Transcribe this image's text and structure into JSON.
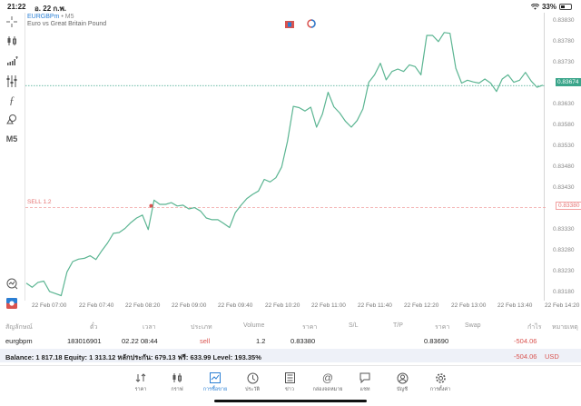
{
  "status_bar": {
    "time": "21:22",
    "date": "อ. 22 ก.พ.",
    "battery": "33%"
  },
  "chart": {
    "symbol": "EURGBPm",
    "separator": "•",
    "timeframe": "M5",
    "description": "Euro vs Great Britain Pound",
    "current_price": "0.83674",
    "sell_label": "SELL 1.2",
    "sell_price": "0.83380",
    "colors": {
      "line": "#5bb592",
      "current": "#3aa58a",
      "sell": "#e57373"
    }
  },
  "left_toolbar": [
    {
      "name": "crosshair-icon",
      "glyph": "+"
    },
    {
      "name": "chart-type-icon",
      "glyph": ""
    },
    {
      "name": "indicators-icon",
      "glyph": ""
    },
    {
      "name": "settings-sliders-icon",
      "glyph": ""
    },
    {
      "name": "function-icon",
      "glyph": "ƒ"
    },
    {
      "name": "objects-icon",
      "glyph": ""
    },
    {
      "name": "timeframe",
      "glyph": "M5"
    }
  ],
  "chart_data": {
    "type": "line",
    "title": "EURGBPm • M5",
    "subtitle": "Euro vs Great Britain Pound",
    "xlabel": "",
    "ylabel": "",
    "ylim": [
      0.8316,
      0.8385
    ],
    "y_ticks": [
      "0.83830",
      "0.83780",
      "0.83730",
      "0.83680",
      "0.83630",
      "0.83580",
      "0.83530",
      "0.83480",
      "0.83430",
      "0.83380",
      "0.83330",
      "0.83280",
      "0.83230",
      "0.83180"
    ],
    "x_ticks": [
      "22 Feb 07:00",
      "22 Feb 07:40",
      "22 Feb 08:20",
      "22 Feb 09:00",
      "22 Feb 09:40",
      "22 Feb 10:20",
      "22 Feb 11:00",
      "22 Feb 11:40",
      "22 Feb 12:20",
      "22 Feb 13:00",
      "22 Feb 13:40",
      "22 Feb 14:20"
    ],
    "grid": false,
    "series": [
      {
        "name": "EURGBPm close",
        "values": [
          0.83198,
          0.83188,
          0.832,
          0.83203,
          0.83178,
          0.83173,
          0.83168,
          0.83225,
          0.8325,
          0.83256,
          0.83258,
          0.83264,
          0.83255,
          0.83276,
          0.83295,
          0.83318,
          0.8332,
          0.8333,
          0.83344,
          0.83355,
          0.83362,
          0.83327,
          0.83398,
          0.83388,
          0.83388,
          0.83392,
          0.83384,
          0.83386,
          0.83377,
          0.8338,
          0.83372,
          0.83355,
          0.83351,
          0.83351,
          0.83342,
          0.83332,
          0.83368,
          0.83386,
          0.83402,
          0.83412,
          0.8342,
          0.83448,
          0.83442,
          0.83452,
          0.83478,
          0.8354,
          0.83624,
          0.83621,
          0.83613,
          0.83622,
          0.83574,
          0.83605,
          0.83658,
          0.83623,
          0.83608,
          0.83588,
          0.83574,
          0.8359,
          0.83618,
          0.83682,
          0.837,
          0.83728,
          0.83688,
          0.83708,
          0.83714,
          0.83708,
          0.83724,
          0.8372,
          0.837,
          0.83795,
          0.83795,
          0.8378,
          0.83802,
          0.838,
          0.83716,
          0.8368,
          0.83687,
          0.83683,
          0.8368,
          0.8369,
          0.8368,
          0.8366,
          0.8369,
          0.837,
          0.83682,
          0.83687,
          0.83706,
          0.83685,
          0.8367,
          0.83675
        ]
      }
    ],
    "annotations": [
      {
        "type": "hline",
        "label": "SELL 1.2",
        "value": 0.8338,
        "style": "dashed red"
      },
      {
        "type": "hline",
        "label": "current",
        "value": 0.83674,
        "style": "dotted green"
      },
      {
        "type": "marker",
        "at": "22 Feb 08:44",
        "value": 0.8338,
        "color": "red"
      }
    ]
  },
  "chart_icons": [
    {
      "name": "one-click-trading-icon"
    },
    {
      "name": "trade-level-icon"
    }
  ],
  "trades_table": {
    "headers": [
      "สัญลักษณ์",
      "ตั๋ว",
      "เวลา",
      "ประเภท",
      "Volume",
      "ราคา",
      "S/L",
      "T/P",
      "ราคา",
      "Swap",
      "กำไร",
      "หมายเหตุ"
    ],
    "rows": [
      {
        "symbol": "eurgbpm",
        "ticket": "183016901",
        "time": "02.22 08:44",
        "type": "sell",
        "volume": "1.2",
        "open_price": "0.83380",
        "sl": "",
        "tp": "",
        "price": "0.83690",
        "swap": "",
        "profit": "-504.06",
        "comment": ""
      }
    ],
    "summary": {
      "text": "Balance: 1 817.18 Equity: 1 313.12 หลักประกัน: 679.13 ฟรี: 633.99 Level: 193.35%",
      "profit": "-504.06",
      "currency": "USD"
    }
  },
  "bottom_nav": [
    {
      "label": "ราคา",
      "icon": "quotes-icon"
    },
    {
      "label": "กราฟ",
      "icon": "chart-icon"
    },
    {
      "label": "การซื้อขาย",
      "icon": "trade-icon",
      "active": true
    },
    {
      "label": "ประวัติ",
      "icon": "history-icon"
    },
    {
      "label": "ข่าว",
      "icon": "news-icon"
    },
    {
      "label": "กล่องจดหมาย",
      "icon": "mailbox-icon"
    },
    {
      "label": "แชท",
      "icon": "chat-icon"
    },
    {
      "label": "บัญชี",
      "icon": "account-icon"
    },
    {
      "label": "การตั้งค่า",
      "icon": "settings-icon"
    }
  ]
}
